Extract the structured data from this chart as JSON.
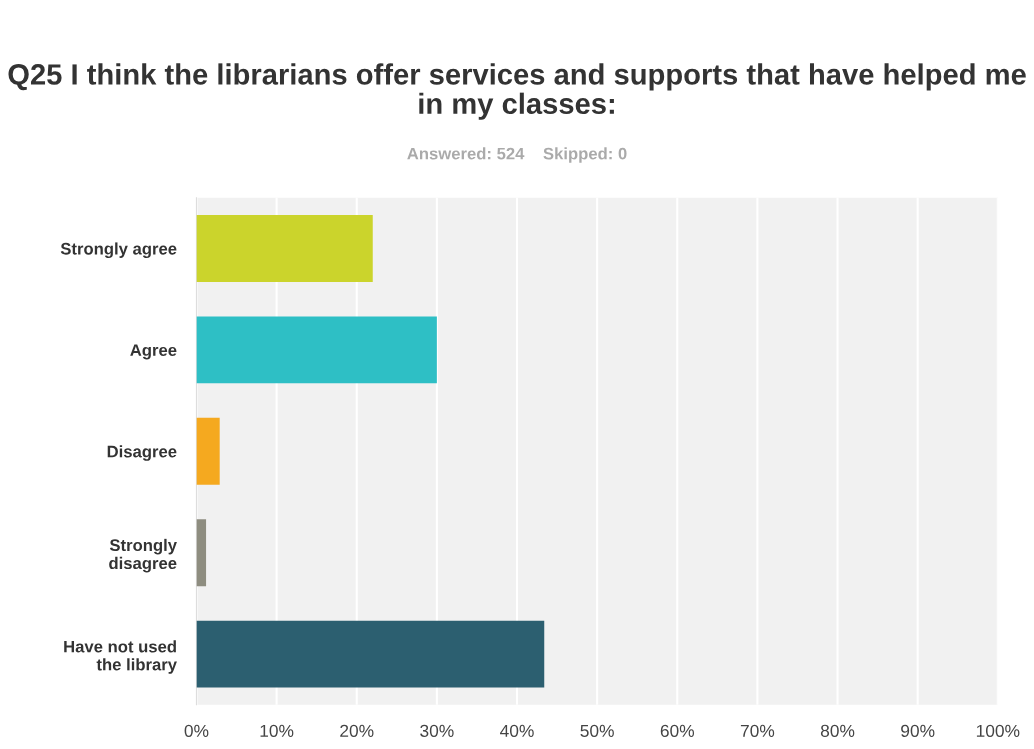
{
  "chart_data": {
    "type": "bar",
    "orientation": "horizontal",
    "title": "Q25 I think the librarians offer services and supports that have helped me in my classes:",
    "subtitle": "Answered: 524    Skipped: 0",
    "categories": [
      "Strongly agree",
      "Agree",
      "Disagree",
      "Strongly\ndisagree",
      "Have not used\nthe library"
    ],
    "values": [
      22,
      30,
      2.9,
      1.2,
      43.4
    ],
    "colors": [
      "#cbd42c",
      "#2ebfc5",
      "#f5a91f",
      "#8e8d80",
      "#2c5f70"
    ],
    "xlim": [
      0,
      100
    ],
    "xticks": [
      {
        "value": 0,
        "label": "0%"
      },
      {
        "value": 10,
        "label": "10%"
      },
      {
        "value": 20,
        "label": "20%"
      },
      {
        "value": 30,
        "label": "30%"
      },
      {
        "value": 40,
        "label": "40%"
      },
      {
        "value": 50,
        "label": "50%"
      },
      {
        "value": 60,
        "label": "60%"
      },
      {
        "value": 70,
        "label": "70%"
      },
      {
        "value": 80,
        "label": "80%"
      },
      {
        "value": 90,
        "label": "90%"
      },
      {
        "value": 100,
        "label": "100%"
      }
    ],
    "grid": "x"
  }
}
